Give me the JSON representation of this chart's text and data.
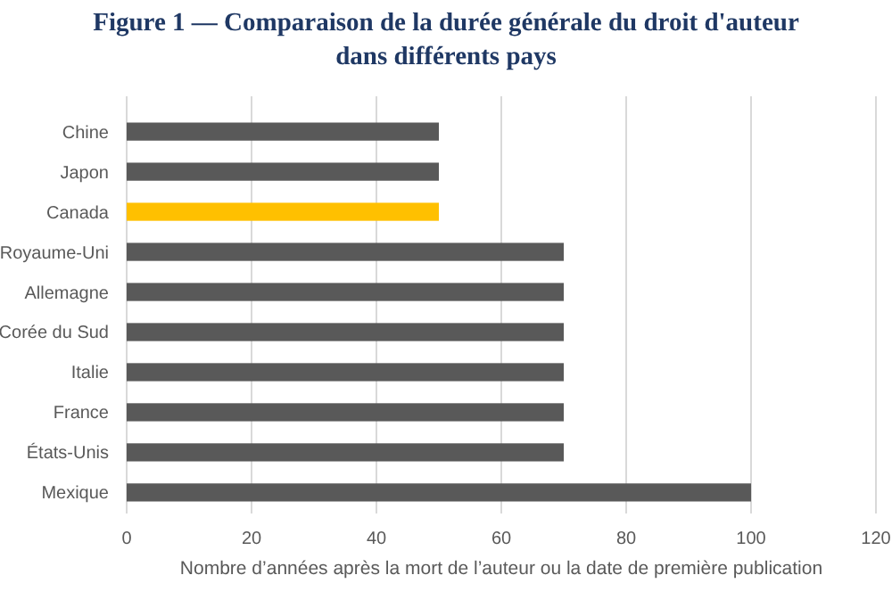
{
  "chart_data": {
    "type": "bar",
    "orientation": "horizontal",
    "title": "Figure 1 — Comparaison de la durée générale du droit d'auteur dans différents pays",
    "xlabel": "Nombre d’années après la mort de l’auteur ou la date de première publication",
    "categories": [
      "Chine",
      "Japon",
      "Canada",
      "Royaume-Uni",
      "Allemagne",
      "Corée du Sud",
      "Italie",
      "France",
      "États-Unis",
      "Mexique"
    ],
    "values": [
      50,
      50,
      50,
      70,
      70,
      70,
      70,
      70,
      70,
      100
    ],
    "colors": [
      "#595959",
      "#595959",
      "#ffc000",
      "#595959",
      "#595959",
      "#595959",
      "#595959",
      "#595959",
      "#595959",
      "#595959"
    ],
    "xlim": [
      0,
      120
    ],
    "xticks": [
      0,
      20,
      40,
      60,
      80,
      100,
      120
    ],
    "grid": "x"
  }
}
